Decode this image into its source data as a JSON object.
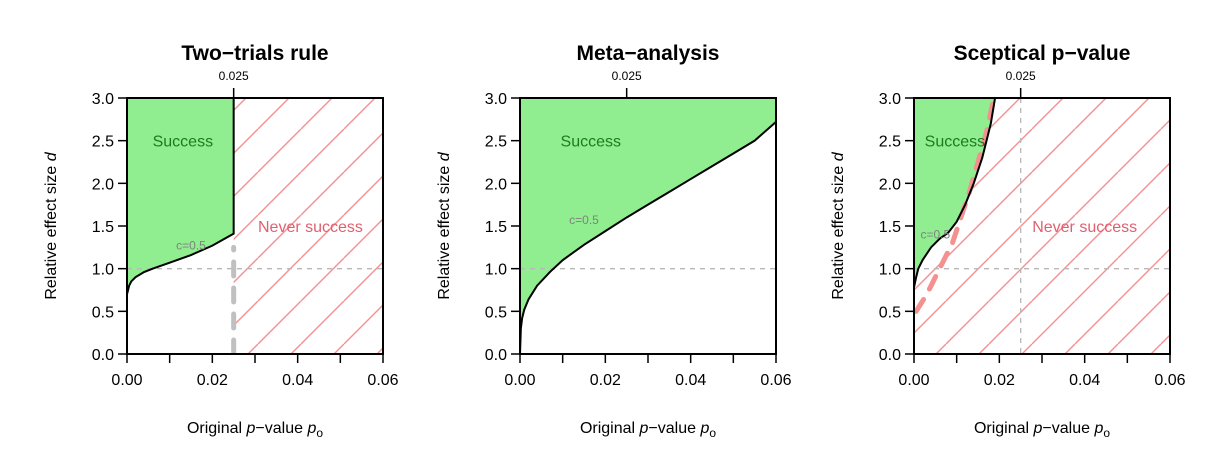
{
  "chart_data": [
    {
      "type": "area",
      "title": "Two−trials rule",
      "xlabel_parts": [
        "Original ",
        "p",
        "−value ",
        "p",
        "o"
      ],
      "ylabel_parts": [
        "Relative effect size ",
        "d"
      ],
      "xlim": [
        0,
        0.06
      ],
      "ylim": [
        0,
        3
      ],
      "xticks": [
        "0.00",
        "0.02",
        "0.04",
        "0.06"
      ],
      "yticks": [
        "0.0",
        "0.5",
        "1.0",
        "1.5",
        "2.0",
        "2.5",
        "3.0"
      ],
      "top_tick": {
        "x": 0.025,
        "label": "0.025"
      },
      "success_label": "Success",
      "success_label_at": [
        0.006,
        2.5
      ],
      "never_label": "Never success",
      "never_label_at": [
        0.043,
        1.5
      ],
      "hatch_from": 0.025,
      "hatch_vertical_guide": false,
      "c_label": "c=0.5",
      "c_label_at": [
        0.015,
        1.27
      ],
      "boundary": [
        [
          0,
          0.7
        ],
        [
          0.0005,
          0.8
        ],
        [
          0.001,
          0.85
        ],
        [
          0.002,
          0.9
        ],
        [
          0.004,
          0.96
        ],
        [
          0.006,
          1.0
        ],
        [
          0.01,
          1.07
        ],
        [
          0.015,
          1.16
        ],
        [
          0.02,
          1.27
        ],
        [
          0.025,
          1.41
        ]
      ],
      "vertical_edge": [
        0.025,
        1.41,
        3.0
      ],
      "dashed_curve": [
        [
          0.025,
          0
        ],
        [
          0.025,
          1.25
        ]
      ],
      "hline": 1.0
    },
    {
      "type": "area",
      "title": "Meta−analysis",
      "xlabel_parts": [
        "Original ",
        "p",
        "−value ",
        "p",
        "o"
      ],
      "ylabel_parts": [
        "Relative effect size ",
        "d"
      ],
      "xlim": [
        0,
        0.06
      ],
      "ylim": [
        0,
        3
      ],
      "xticks": [
        "0.00",
        "0.02",
        "0.04",
        "0.06"
      ],
      "yticks": [
        "0.0",
        "0.5",
        "1.0",
        "1.5",
        "2.0",
        "2.5",
        "3.0"
      ],
      "top_tick": {
        "x": 0.025,
        "label": "0.025"
      },
      "success_label": "Success",
      "success_label_at": [
        0.0095,
        2.5
      ],
      "never_label": "",
      "never_label_at": null,
      "hatch_from": null,
      "hatch_vertical_guide": false,
      "c_label": "c=0.5",
      "c_label_at": [
        0.015,
        1.57
      ],
      "boundary": [
        [
          0,
          0
        ],
        [
          0.0002,
          0.3
        ],
        [
          0.0005,
          0.42
        ],
        [
          0.001,
          0.52
        ],
        [
          0.002,
          0.64
        ],
        [
          0.004,
          0.8
        ],
        [
          0.007,
          0.96
        ],
        [
          0.01,
          1.1
        ],
        [
          0.015,
          1.28
        ],
        [
          0.02,
          1.44
        ],
        [
          0.025,
          1.6
        ],
        [
          0.03,
          1.75
        ],
        [
          0.035,
          1.9
        ],
        [
          0.04,
          2.05
        ],
        [
          0.045,
          2.2
        ],
        [
          0.05,
          2.35
        ],
        [
          0.055,
          2.5
        ],
        [
          0.06,
          2.72
        ]
      ],
      "vertical_edge": null,
      "dashed_curve": null,
      "hline": 1.0
    },
    {
      "type": "area",
      "title": "Sceptical p−value",
      "xlabel_parts": [
        "Original ",
        "p",
        "−value ",
        "p",
        "o"
      ],
      "ylabel_parts": [
        "Relative effect size ",
        "d"
      ],
      "xlim": [
        0,
        0.06
      ],
      "ylim": [
        0,
        3
      ],
      "xticks": [
        "0.00",
        "0.02",
        "0.04",
        "0.06"
      ],
      "yticks": [
        "0.0",
        "0.5",
        "1.0",
        "1.5",
        "2.0",
        "2.5",
        "3.0"
      ],
      "top_tick": {
        "x": 0.025,
        "label": "0.025"
      },
      "success_label": "Success",
      "success_label_at": [
        0.0025,
        2.5
      ],
      "never_label": "Never success",
      "never_label_at": [
        0.04,
        1.5
      ],
      "hatch_from": 0.0,
      "hatch_vertical_guide": true,
      "c_label": "c=0.5",
      "c_label_at": [
        0.005,
        1.4
      ],
      "boundary": [
        [
          0,
          0.78
        ],
        [
          0.0005,
          0.9
        ],
        [
          0.001,
          1.0
        ],
        [
          0.002,
          1.1
        ],
        [
          0.004,
          1.25
        ],
        [
          0.006,
          1.35
        ],
        [
          0.008,
          1.42
        ],
        [
          0.01,
          1.55
        ],
        [
          0.012,
          1.75
        ],
        [
          0.014,
          2.0
        ],
        [
          0.016,
          2.3
        ],
        [
          0.018,
          2.7
        ],
        [
          0.019,
          3.0
        ]
      ],
      "vertical_edge": null,
      "dashed_curve": [
        [
          0.0005,
          0.5
        ],
        [
          0.003,
          0.7
        ],
        [
          0.006,
          1.0
        ],
        [
          0.009,
          1.3
        ],
        [
          0.011,
          1.6
        ],
        [
          0.013,
          1.9
        ],
        [
          0.015,
          2.25
        ],
        [
          0.017,
          2.6
        ],
        [
          0.0185,
          2.95
        ]
      ],
      "hline": 1.0
    }
  ]
}
